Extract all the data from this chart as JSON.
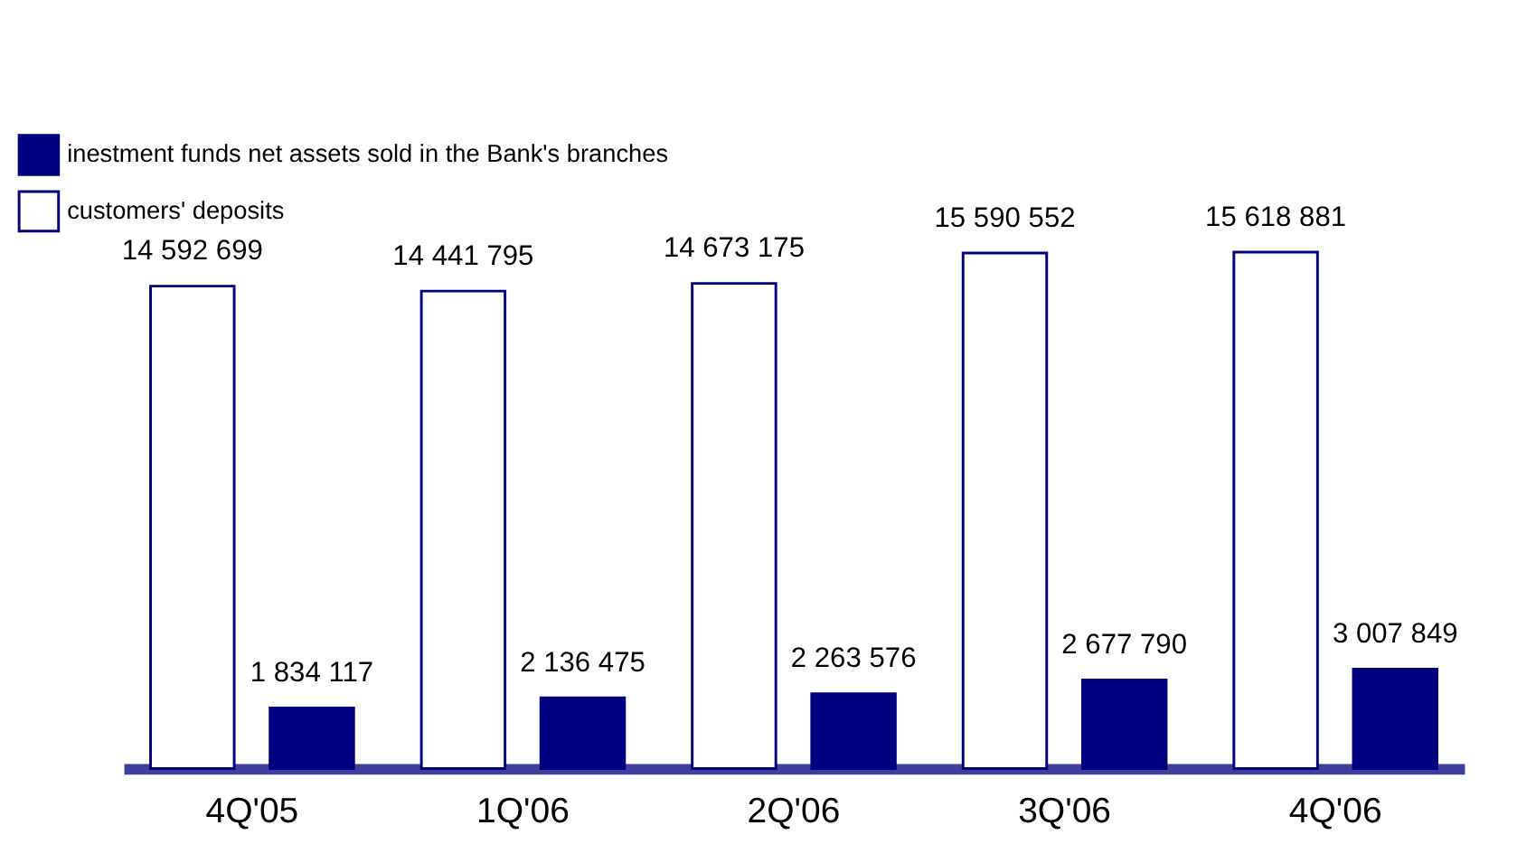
{
  "chart_data": {
    "type": "bar",
    "categories": [
      "4Q'05",
      "1Q'06",
      "2Q'06",
      "3Q'06",
      "4Q'06"
    ],
    "series": [
      {
        "name": "inestment funds net assets sold in the Bank's branches",
        "color": "#000080",
        "values": [
          1834117,
          2136475,
          2263576,
          2677790,
          3007849
        ],
        "value_labels": [
          "1 834 117",
          "2 136 475",
          "2 263 576",
          "2 677 790",
          "3 007 849"
        ]
      },
      {
        "name": "customers' deposits",
        "color": "#ffffff",
        "values": [
          14592699,
          14441795,
          14673175,
          15590552,
          15618881
        ],
        "value_labels": [
          "14 592 699",
          "14 441 795",
          "14 673 175",
          "15 590 552",
          "15 618 881"
        ]
      }
    ],
    "legend": "top left",
    "grid": false,
    "tick_labels": "x"
  }
}
